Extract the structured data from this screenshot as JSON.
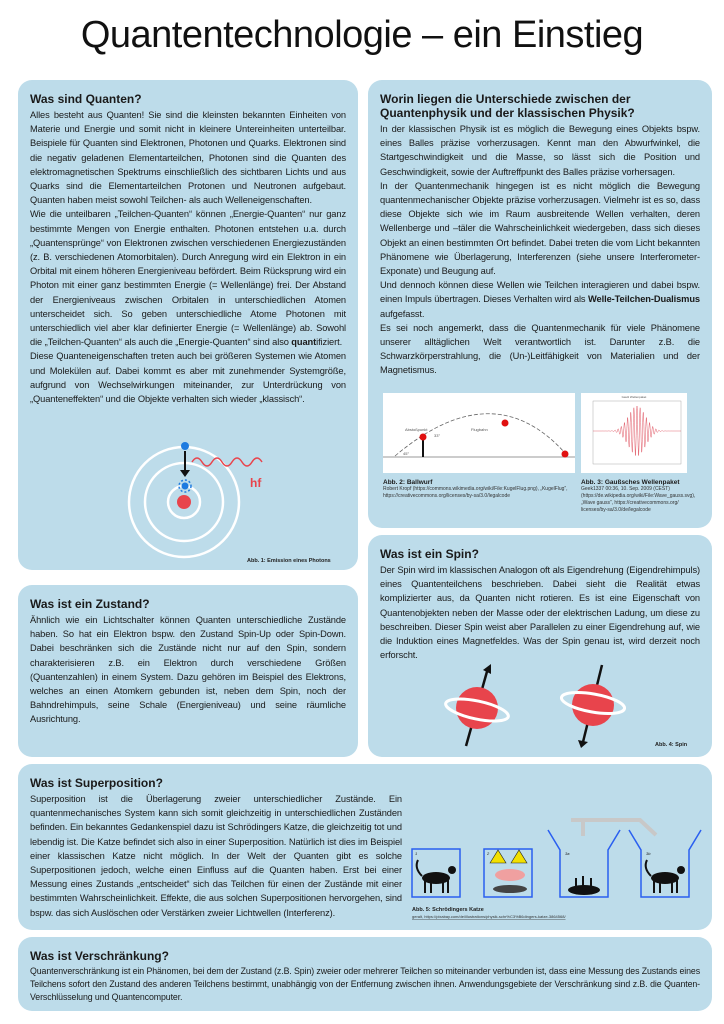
{
  "title": "Quantentechnologie – ein Einstieg",
  "quanten": {
    "heading": "Was sind Quanten?",
    "p1": "Alles besteht aus Quanten! Sie sind die kleinsten bekannten Einheiten von Materie und Energie und somit nicht in kleinere Untereinheiten unterteilbar. Beispiele für Quanten sind Elektronen, Photonen und Quarks. Elektronen sind die negativ geladenen Elementarteilchen, Photonen sind die Quanten des elektromagnetischen Spektrums einschließlich des sichtbaren Lichts und aus Quarks sind die Elementarteilchen Protonen und Neutronen aufgebaut. Quanten haben meist sowohl Teilchen- als auch Welleneigenschaften.",
    "p2a": "Wie die unteilbaren „Teilchen-Quanten“ können „Energie-Quanten“ nur ganz bestimmte Mengen von Energie enthalten. Photonen entstehen u.a. durch „Quantensprünge“ von Elektronen zwischen verschiedenen Energiezuständen (z. B. verschiedenen Atomorbitalen). Durch Anregung wird ein Elektron in ein Orbital mit einem höheren Energieniveau befördert. Beim Rücksprung wird ein Photon mit einer ganz bestimmten Energie (= Wellenlänge) frei. Der Abstand der Energieniveaus zwischen Orbitalen in unterschiedlichen Atomen unterscheidet sich. So geben unterschiedliche Atome Photonen mit unterschiedlich viel aber klar definierter Energie (= Wellenlänge) ab. Sowohl die „Teilchen-Quanten“ als auch die „Energie-Quanten“ sind also ",
    "p2bold": "quant",
    "p2b": "ifiziert.",
    "p3": "Diese Quanteneigenschaften treten auch bei größeren Systemen wie Atomen und Molekülen auf. Dabei kommt es aber mit zunehmender Systemgröße, aufgrund von Wechselwirkungen miteinander, zur Unterdrückung von „Quanteneffekten“ und die Objekte verhalten sich wieder „klassisch“.",
    "figure_label": "hf",
    "caption": "Abb. 1: Emission eines Photons"
  },
  "unterschiede": {
    "heading": "Worin liegen die Unterschiede zwischen der Quantenphysik und der klassischen Physik?",
    "p1": "In der klassischen Physik ist es möglich die Bewegung eines Objekts bspw. eines Balles präzise vorherzusagen. Kennt man den Abwurfwinkel, die Startgeschwindigkeit und die Masse, so lässt sich die Position und Geschwindigkeit, sowie der Auftreffpunkt des Balles präzise vorhersagen.",
    "p2": "In der Quantenmechanik hingegen ist es nicht möglich die Bewegung quantenmechanischer Objekte präzise vorherzusagen. Vielmehr ist es so, dass diese Objekte sich wie im Raum ausbreitende Wellen verhalten, deren Wellenberge und –täler die Wahrscheinlichkeit wiedergeben, dass sich dieses Objekt an einen bestimmten Ort befindet. Dabei treten die vom Licht bekannten Phänomene wie Überlagerung,  Interferenzen (siehe unsere Interferometer-Exponate) und Beugung auf.",
    "p3a": "Und dennoch können diese Wellen wie Teilchen interagieren und dabei bspw. einen Impuls übertragen. Dieses Verhalten wird als ",
    "p3bold": "Welle-Teilchen-Dualismus",
    "p3b": " aufgefasst.",
    "p4": "Es sei noch angemerkt, dass die Quantenmechanik für viele Phänomene unserer alltäglichen Welt verantwortlich ist. Darunter z.B. die Schwarzkörperstrahlung, die (Un-)Leitfähigkeit von Materialien und der Magnetismus.",
    "fig2": {
      "label_start": "Abstoßpunkt",
      "label_path": "Flugbahn",
      "angle1": "33°",
      "angle2": "45°",
      "caption": "Abb. 2: Ballwurf",
      "source": "Robert Kropf (https://commons.wikimedia.org/wiki/File:KugelFlug.png), „KugelFlug“, https://creativecommons.org/licenses/by-sa/3.0/legalcode"
    },
    "fig3": {
      "chart_title": "Gauß Wellenpaket",
      "caption": "Abb. 3: Gaußsches Wellenpaket",
      "source": "Geek1337 00:36, 10. Sep. 2009 (CEST) (https://de.wikipedia.org/wiki/File:Wave_gauss.svg), „Wave gauss“, https://creativecommons.org/ licenses/by-sa/3.0/de/legalcode"
    }
  },
  "zustand": {
    "heading": "Was ist ein Zustand?",
    "p1": "Ähnlich wie ein Lichtschalter können Quanten unterschiedliche Zustände haben. So hat ein Elektron bspw. den Zustand Spin-Up oder Spin-Down. Dabei beschränken sich die Zustände nicht nur auf den Spin, sondern charakterisieren z.B. ein Elektron durch verschiedene Größen (Quantenzahlen) in einem System. Dazu gehören im Beispiel des Elektrons, welches an einen Atomkern gebunden ist, neben dem Spin, noch der Bahndrehimpuls, seine Schale (Energieniveau) und seine räumliche Ausrichtung."
  },
  "spin": {
    "heading": "Was ist ein Spin?",
    "p1": "Der Spin wird im klassischen Analogon oft als Eigendrehung (Eigendrehimpuls) eines Quantenteilchens beschrieben. Dabei sieht die Realität etwas komplizierter aus, da Quanten nicht rotieren. Es ist eine Eigenschaft von Quantenobjekten neben der Masse oder der elektrischen Ladung, um diese zu beschreiben. Dieser Spin weist aber Parallelen zu einer Eigendrehung auf, wie die Induktion eines Magnetfeldes. Was der Spin genau ist, wird derzeit noch erforscht.",
    "caption": "Abb. 4: Spin"
  },
  "superposition": {
    "heading": "Was ist Superposition?",
    "p1": "Superposition ist die Überlagerung zweier unterschiedlicher Zustände. Ein quantenmechanisches System kann sich somit gleichzeitig in unterschiedlichen Zuständen befinden. Ein bekanntes Gedankenspiel dazu ist Schrödingers Katze, die gleichzeitig tot und lebendig ist. Die Katze befindet sich also in einer Superposition. Natürlich ist dies im Beispiel einer klassischen Katze nicht möglich. In der Welt der Quanten gibt es solche Superpositionen jedoch, welche einen Einfluss auf die Quanten haben. Erst bei einer Messung eines Zustands „entscheidet“ sich das Teilchen für einen der Zustände mit einer bestimmten Wahrscheinlichkeit. Effekte, die aus solchen Superpositionen hervorgehen, sind bspw. das sich Auslöschen oder Verstärken zweier Lichtwellen (Interferenz).",
    "box_labels": [
      "1",
      "2",
      "3a",
      "3b"
    ],
    "caption": "Abb. 5: Schrödingers Katze",
    "source": "geralt, https://pixabay.com/de/illustrations/physik-schr%C3%B6dingers-katze-3864568/"
  },
  "verschraenkung": {
    "heading": "Was ist Verschränkung?",
    "p1": "Quantenverschränkung ist ein Phänomen, bei dem der Zustand (z.B. Spin) zweier oder mehrerer Teilchen so miteinander verbunden ist, dass eine Messung des Zustands eines Teilchens sofort den Zustand des anderen Teilchens bestimmt, unabhängig von der Entfernung zwischen ihnen. Anwendungsgebiete der Verschränkung sind z.B. die Quanten-Verschlüsselung und Quantencomputer."
  },
  "colors": {
    "panel": "#bddcea",
    "electron": "#1e7be0",
    "nucleus": "#e8444c",
    "photon": "#e8444c",
    "box": "#2a5ff0"
  }
}
